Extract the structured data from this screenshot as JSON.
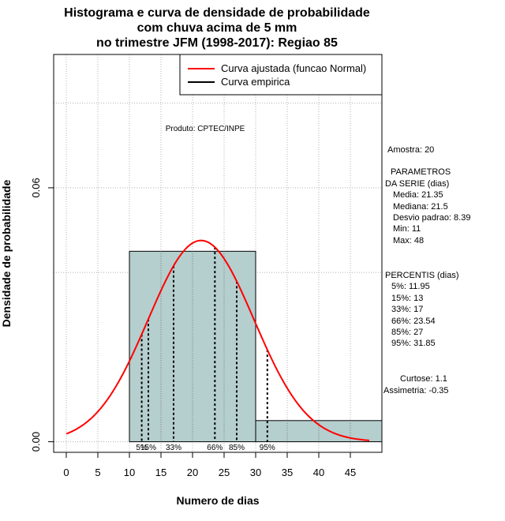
{
  "chart_data": {
    "type": "histogram",
    "title": [
      "Histograma e curva de densidade de probabilidade",
      "com chuva acima de 5 mm",
      "no trimestre JFM (1998-2017): Regiao 85"
    ],
    "xlabel": "Numero de dias",
    "ylabel": "Densidade de probabilidade",
    "xlim": [
      -2,
      50
    ],
    "ylim": [
      -0.0025,
      0.0915
    ],
    "xticks": [
      0,
      5,
      10,
      15,
      20,
      25,
      30,
      35,
      40,
      45
    ],
    "xtick_labels": [
      "0",
      "5",
      "10",
      "15",
      "20",
      "25",
      "30",
      "35",
      "40",
      "45"
    ],
    "yticks": [
      0.0,
      0.06
    ],
    "ytick_labels": [
      "0.00",
      "0.06"
    ],
    "hgrid": [
      0.0,
      0.04,
      0.06,
      0.08
    ],
    "histogram": {
      "bins": [
        [
          10,
          30,
          0.045
        ],
        [
          30,
          50,
          0.005
        ]
      ],
      "fill": "#b5cece",
      "edge": "#000000"
    },
    "normal_curve": {
      "mean": 21.35,
      "sd": 8.39,
      "range": [
        0,
        48
      ],
      "color": "#ff0000",
      "name": "Curva ajustada (funcao Normal)"
    },
    "empirical_curve": {
      "name": "Curva empirica",
      "color": "#000000"
    },
    "percentile_lines": [
      {
        "label": "5%",
        "value": 11.95
      },
      {
        "label": "15%",
        "value": 13
      },
      {
        "label": "33%",
        "value": 17
      },
      {
        "label": "66%",
        "value": 23.54
      },
      {
        "label": "85%",
        "value": 27
      },
      {
        "label": "95%",
        "value": 31.85
      }
    ],
    "product_note": "Produto: CPTEC/INPE",
    "stats": {
      "sample": "Amostra: 20",
      "params_title": [
        "PARAMETROS",
        "DA SERIE (dias)"
      ],
      "params": [
        "Media: 21.35",
        "Mediana: 21.5",
        "Desvio padrao: 8.39",
        "Min: 11",
        "Max: 48"
      ],
      "percentis_title": "PERCENTIS (dias)",
      "percentis": [
        "5%: 11.95",
        "15%: 13",
        "33%: 17",
        "66%: 23.54",
        "85%: 27",
        "95%: 31.85"
      ],
      "kurtosis": "Curtose: 1.1",
      "skewness": "Assimetria: -0.35"
    }
  }
}
